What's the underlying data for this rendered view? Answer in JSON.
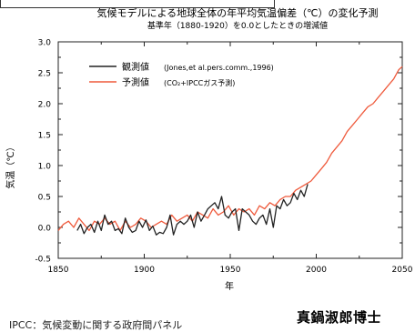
{
  "chart_data": {
    "type": "line",
    "title": "気候モデルによる地球全体の年平均気温偏差（℃）の変化予測",
    "subtitle": "基準年（1880-1920）を0.0としたときの増減値",
    "xlabel": "年",
    "ylabel": "気温（℃）",
    "xlim": [
      1850,
      2050
    ],
    "ylim": [
      -0.5,
      3.0
    ],
    "xticks": [
      1850,
      1900,
      1950,
      2000,
      2050
    ],
    "yticks": [
      -0.5,
      0.0,
      0.5,
      1.0,
      1.5,
      2.0,
      2.5,
      3.0
    ],
    "ytick_labels": [
      "-0.5",
      "0.0",
      "0.5",
      "1.0",
      "1.5",
      "2.0",
      "2.5",
      "3.0"
    ],
    "grid": false,
    "legend_position": "top-left",
    "series": [
      {
        "name": "観測値",
        "note": "(Jones,et al.pers.comm.,1996)",
        "color": "#222222",
        "x": [
          1861,
          1863,
          1865,
          1867,
          1869,
          1871,
          1873,
          1875,
          1877,
          1879,
          1881,
          1883,
          1885,
          1887,
          1889,
          1891,
          1893,
          1895,
          1897,
          1899,
          1901,
          1903,
          1905,
          1907,
          1909,
          1911,
          1913,
          1915,
          1917,
          1919,
          1921,
          1923,
          1925,
          1927,
          1929,
          1931,
          1933,
          1935,
          1937,
          1939,
          1941,
          1943,
          1945,
          1947,
          1949,
          1951,
          1953,
          1955,
          1957,
          1959,
          1961,
          1963,
          1965,
          1967,
          1969,
          1971,
          1973,
          1975,
          1977,
          1979,
          1981,
          1983,
          1985,
          1987,
          1989,
          1991,
          1993,
          1995
        ],
        "y": [
          -0.05,
          0.05,
          -0.1,
          0.0,
          0.05,
          -0.08,
          0.1,
          -0.05,
          0.2,
          0.05,
          0.1,
          -0.05,
          -0.02,
          -0.1,
          0.15,
          0.0,
          -0.08,
          -0.05,
          0.1,
          0.0,
          0.12,
          -0.05,
          0.02,
          -0.12,
          -0.08,
          -0.1,
          0.0,
          0.2,
          -0.12,
          0.05,
          0.1,
          0.05,
          0.1,
          0.2,
          0.0,
          0.25,
          0.1,
          0.2,
          0.3,
          0.35,
          0.4,
          0.3,
          0.5,
          0.2,
          0.15,
          0.25,
          0.3,
          -0.05,
          0.3,
          0.25,
          0.2,
          0.1,
          0.05,
          0.15,
          0.2,
          0.05,
          0.3,
          0.0,
          0.35,
          0.3,
          0.45,
          0.35,
          0.4,
          0.55,
          0.45,
          0.6,
          0.5,
          0.7
        ]
      },
      {
        "name": "予測値",
        "note": "(CO₂+IPCCガス予測)",
        "color": "#ef5a3c",
        "x": [
          1850,
          1853,
          1856,
          1859,
          1862,
          1865,
          1868,
          1871,
          1874,
          1877,
          1880,
          1883,
          1886,
          1889,
          1892,
          1895,
          1898,
          1901,
          1904,
          1907,
          1910,
          1913,
          1916,
          1919,
          1922,
          1925,
          1928,
          1931,
          1934,
          1937,
          1940,
          1943,
          1946,
          1949,
          1952,
          1955,
          1958,
          1961,
          1964,
          1967,
          1970,
          1973,
          1976,
          1979,
          1982,
          1985,
          1988,
          1991,
          1994,
          1997,
          2000,
          2003,
          2006,
          2009,
          2012,
          2015,
          2018,
          2021,
          2024,
          2027,
          2030,
          2033,
          2036,
          2039,
          2042,
          2045,
          2048,
          2050
        ],
        "y": [
          -0.05,
          0.05,
          0.1,
          0.0,
          0.15,
          0.05,
          -0.05,
          0.1,
          0.05,
          0.15,
          0.05,
          0.1,
          -0.05,
          0.1,
          0.0,
          0.05,
          0.15,
          0.1,
          0.0,
          0.05,
          0.1,
          0.05,
          0.2,
          0.1,
          0.15,
          0.2,
          0.1,
          0.25,
          0.2,
          0.15,
          0.3,
          0.2,
          0.25,
          0.35,
          0.2,
          0.3,
          0.25,
          0.3,
          0.2,
          0.35,
          0.3,
          0.4,
          0.35,
          0.45,
          0.5,
          0.5,
          0.6,
          0.65,
          0.7,
          0.75,
          0.85,
          0.95,
          1.05,
          1.2,
          1.3,
          1.4,
          1.55,
          1.65,
          1.75,
          1.85,
          1.95,
          2.0,
          2.1,
          2.2,
          2.3,
          2.4,
          2.55,
          2.6
        ]
      }
    ]
  },
  "author": "真鍋淑郎博士",
  "footnote": "IPCC：気候変動に関する政府間パネル"
}
